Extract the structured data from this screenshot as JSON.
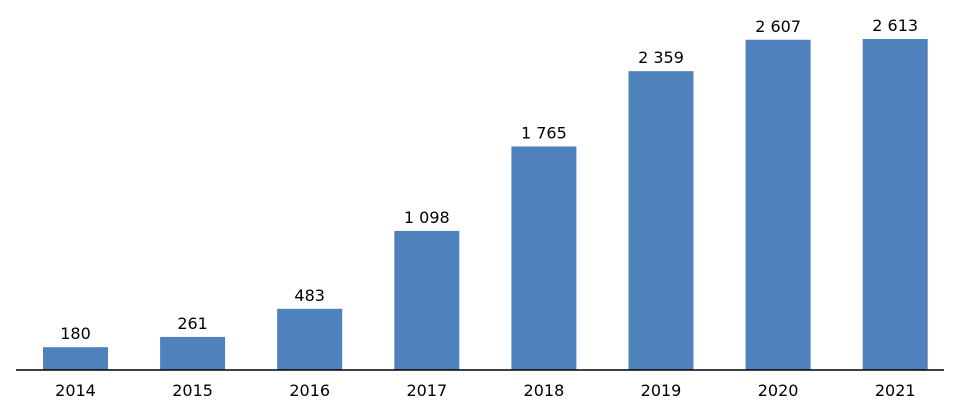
{
  "chart_data": {
    "type": "bar",
    "categories": [
      "2014",
      "2015",
      "2016",
      "2017",
      "2018",
      "2019",
      "2020",
      "2021"
    ],
    "values": [
      180,
      261,
      483,
      1098,
      1765,
      2359,
      2607,
      2613
    ],
    "data_labels": [
      "180",
      "261",
      "483",
      "1 098",
      "1 765",
      "2 359",
      "2 607",
      "2 613"
    ],
    "title": "",
    "xlabel": "",
    "ylabel": "",
    "ylim": [
      0,
      2613
    ],
    "grid": false,
    "legend": "none",
    "bar_color": "#4F81BD"
  }
}
